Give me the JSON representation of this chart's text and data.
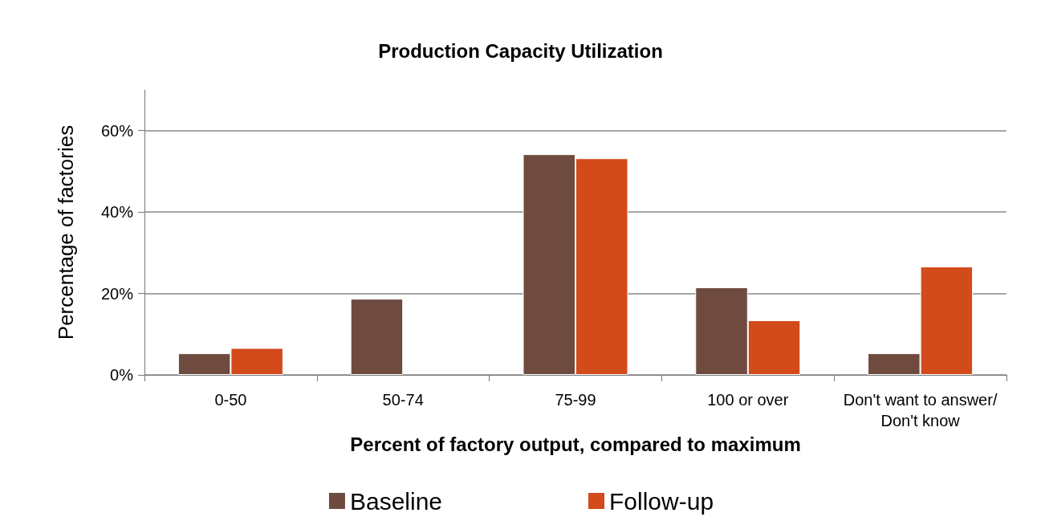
{
  "chart_data": {
    "type": "bar",
    "title": "Production Capacity Utilization",
    "xlabel": "Percent of factory output, compared to maximum",
    "ylabel": "Percentage of factories",
    "categories": [
      "0-50",
      "50-74",
      "75-99",
      "100 or over",
      "Don't want to answer/Don't know"
    ],
    "series": [
      {
        "name": "Baseline",
        "color": "#6f4a3e",
        "values": [
          5.3,
          18.7,
          54.2,
          21.5,
          5.3
        ]
      },
      {
        "name": "Follow-up",
        "color": "#d34a1b",
        "values": [
          6.6,
          null,
          53.2,
          13.4,
          26.6
        ]
      }
    ],
    "ylim": [
      0,
      70
    ],
    "yticks": [
      {
        "value": 0,
        "label": "0%"
      },
      {
        "value": 20,
        "label": "20%"
      },
      {
        "value": 40,
        "label": "40%"
      },
      {
        "value": 60,
        "label": "60%"
      }
    ],
    "grid": "y",
    "legend": "bottom"
  }
}
